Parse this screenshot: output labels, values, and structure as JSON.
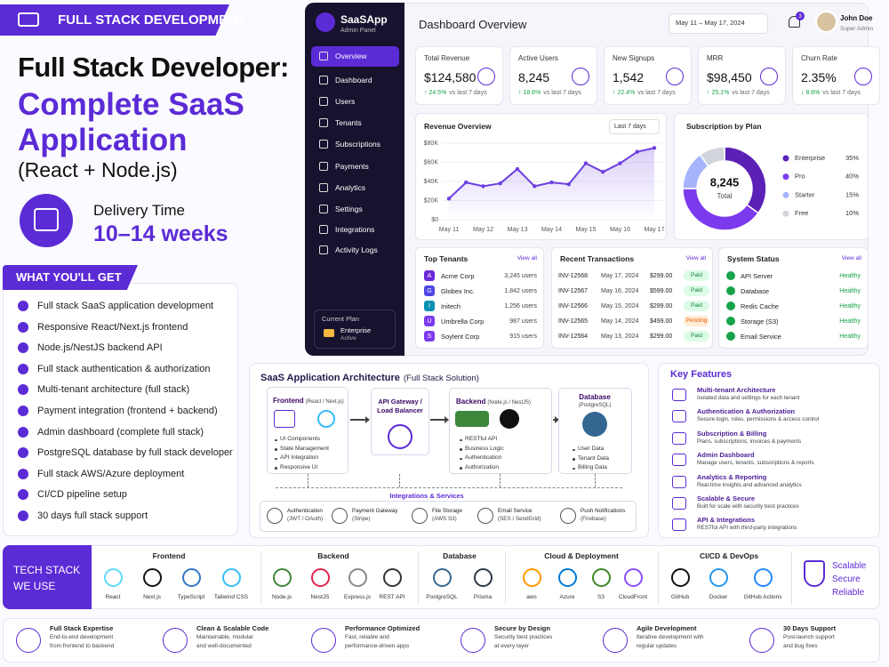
{
  "banner": {
    "tag": "FULL STACK DEVELOPMENT",
    "title_line1": "Full Stack Developer:",
    "title_line2": "Complete SaaS",
    "title_line3": "Application",
    "subtitle": "(React + Node.js)",
    "delivery_label": "Delivery Time",
    "delivery_value": "10–14 weeks"
  },
  "benefits": {
    "title": "WHAT YOU'LL GET",
    "items": [
      "Full stack SaaS application development",
      "Responsive React/Next.js frontend",
      "Node.js/NestJS backend API",
      "Full stack authentication & authorization",
      "Multi-tenant architecture (full stack)",
      "Payment integration (frontend + backend)",
      "Admin dashboard (complete full stack)",
      "PostgreSQL database by full stack developer",
      "Full stack AWS/Azure deployment",
      "CI/CD pipeline setup",
      "30 days full stack support"
    ]
  },
  "dashboard": {
    "brand": "SaaSApp",
    "brand_sub": "Admin Panel",
    "nav": [
      "Overview",
      "Dashboard",
      "Users",
      "Tenants",
      "Subscriptions",
      "Payments",
      "Analytics",
      "Settings",
      "Integrations",
      "Activity Logs"
    ],
    "plan": {
      "label": "Current Plan",
      "name": "Enterprise",
      "status": "Active"
    },
    "title": "Dashboard Overview",
    "date_range": "May 11 – May 17, 2024",
    "notifications": "3",
    "user": {
      "name": "John Doe",
      "role": "Super Admin"
    },
    "kpis": [
      {
        "label": "Total Revenue",
        "value": "$124,580",
        "change": "↑ 24.5%",
        "note": "vs last 7 days"
      },
      {
        "label": "Active Users",
        "value": "8,245",
        "change": "↑ 18.6%",
        "note": "vs last 7 days"
      },
      {
        "label": "New Signups",
        "value": "1,542",
        "change": "↑ 22.4%",
        "note": "vs last 7 days"
      },
      {
        "label": "MRR",
        "value": "$98,450",
        "change": "↑ 25.1%",
        "note": "vs last 7 days"
      },
      {
        "label": "Churn Rate",
        "value": "2.35%",
        "change": "↓ 8.6%",
        "note": "vs last 7 days"
      }
    ],
    "revenue_range": "Last 7 days",
    "top_tenants": {
      "title": "Top Tenants",
      "link": "View all",
      "rows": [
        [
          "A",
          "Acme Corp",
          "3,245 users"
        ],
        [
          "G",
          "Globex Inc.",
          "1,842 users"
        ],
        [
          "I",
          "Initech",
          "1,256 users"
        ],
        [
          "U",
          "Umbrella Corp",
          "987 users"
        ],
        [
          "S",
          "Soylent Corp",
          "915 users"
        ]
      ]
    },
    "transactions": {
      "title": "Recent Transactions",
      "link": "View all",
      "rows": [
        [
          "INV-12568",
          "May 17, 2024",
          "$299.00",
          "Paid"
        ],
        [
          "INV-12567",
          "May 16, 2024",
          "$599.00",
          "Paid"
        ],
        [
          "INV-12566",
          "May 15, 2024",
          "$299.00",
          "Paid"
        ],
        [
          "INV-12565",
          "May 14, 2024",
          "$499.00",
          "Pending"
        ],
        [
          "INV-12564",
          "May 13, 2024",
          "$299.00",
          "Paid"
        ]
      ]
    },
    "system_status": {
      "title": "System Status",
      "link": "View all",
      "rows": [
        [
          "API Server",
          "Healthy"
        ],
        [
          "Database",
          "Healthy"
        ],
        [
          "Redis Cache",
          "Healthy"
        ],
        [
          "Storage (S3)",
          "Healthy"
        ],
        [
          "Email Service",
          "Healthy"
        ]
      ]
    }
  },
  "chart_data": [
    {
      "type": "line",
      "title": "Revenue Overview",
      "categories": [
        "May 11",
        null,
        "May 12",
        null,
        "May 13",
        null,
        "May 14",
        null,
        "May 15",
        null,
        "May 16",
        null,
        "May 17"
      ],
      "values": [
        22000,
        39000,
        35000,
        38000,
        53000,
        35000,
        39000,
        37000,
        59000,
        50000,
        59000,
        71000,
        75000
      ],
      "color": "#6d3fe0",
      "ylim": [
        0,
        80000
      ],
      "yticks": [
        {
          "value": 0,
          "label": "$0"
        },
        {
          "value": 20000,
          "label": "$20K"
        },
        {
          "value": 40000,
          "label": "$40K"
        },
        {
          "value": 60000,
          "label": "$60K"
        },
        {
          "value": 80000,
          "label": "$80K"
        }
      ],
      "grid": true
    },
    {
      "type": "pie",
      "title": "Subscription by Plan",
      "total_value": "8,245",
      "total_label": "Total",
      "categories": [
        "Enterprise",
        "Pro",
        "Starter",
        "Free"
      ],
      "values": [
        35,
        40,
        15,
        10
      ],
      "value_labels": [
        "35%",
        "40%",
        "15%",
        "10%"
      ],
      "colors": [
        "#5b21b6",
        "#7c3aed",
        "#a5b4fc",
        "#d1d5db"
      ]
    }
  ],
  "architecture": {
    "title": "SaaS Application Architecture",
    "subtitle": "(Full Stack Solution)",
    "frontend": {
      "title": "Frontend",
      "sub": "(React / Next.js)",
      "items": [
        "UI Components",
        "State Management",
        "API Integration",
        "Responsive UI"
      ]
    },
    "gateway": {
      "line1": "API Gateway /",
      "line2": "Load Balancer"
    },
    "backend": {
      "title": "Backend",
      "sub": "(Node.js / NestJS)",
      "items": [
        "RESTful API",
        "Business Logic",
        "Authentication",
        "Authorization"
      ]
    },
    "database": {
      "title": "Database",
      "sub": "(PostgreSQL)",
      "items": [
        "User Data",
        "Tenant Data",
        "Billing Data"
      ]
    },
    "integrations_title": "Integrations & Services",
    "integrations": [
      {
        "title": "Authentication",
        "sub": "(JWT / OAuth)"
      },
      {
        "title": "Payment Gateway",
        "sub": "(Stripe)"
      },
      {
        "title": "File Storage",
        "sub": "(AWS S3)"
      },
      {
        "title": "Email Service",
        "sub": "(SES / SendGrid)"
      },
      {
        "title": "Push Notifications",
        "sub": "(Firebase)"
      }
    ]
  },
  "features": {
    "title": "Key Features",
    "items": [
      {
        "title": "Multi-tenant Architecture",
        "desc": "Isolated data and settings for each tenant"
      },
      {
        "title": "Authentication & Authorization",
        "desc": "Secure login, roles, permissions & access control"
      },
      {
        "title": "Subscription & Billing",
        "desc": "Plans, subscriptions, invoices & payments"
      },
      {
        "title": "Admin Dashboard",
        "desc": "Manage users, tenants, subscriptions & reports"
      },
      {
        "title": "Analytics & Reporting",
        "desc": "Real-time insights and advanced analytics"
      },
      {
        "title": "Scalable & Secure",
        "desc": "Built for scale with security best practices"
      },
      {
        "title": "API & Integrations",
        "desc": "RESTful API with third-party integrations"
      }
    ]
  },
  "tech_stack": {
    "title_line1": "TECH STACK",
    "title_line2": "WE USE",
    "groups": [
      {
        "name": "Frontend",
        "items": [
          "React",
          "Next.js",
          "TypeScript",
          "Tailwind CSS"
        ]
      },
      {
        "name": "Backend",
        "items": [
          "Node.js",
          "NestJS",
          "Express.js",
          "REST API"
        ]
      },
      {
        "name": "Database",
        "items": [
          "PostgreSQL",
          "Prisma"
        ]
      },
      {
        "name": "Cloud & Deployment",
        "items": [
          "aws",
          "Azure",
          "S3",
          "CloudFront"
        ]
      },
      {
        "name": "CI/CD & DevOps",
        "items": [
          "GitHub",
          "Docker",
          "GitHub Actions"
        ]
      }
    ],
    "tagline": [
      "Scalable",
      "Secure",
      "Reliable"
    ]
  },
  "footer": [
    {
      "title": "Full Stack Expertise",
      "desc": [
        "End-to-end development",
        "from frontend to backend"
      ]
    },
    {
      "title": "Clean & Scalable Code",
      "desc": [
        "Maintainable, modular",
        "and well-documented"
      ]
    },
    {
      "title": "Performance Optimized",
      "desc": [
        "Fast, reliable and",
        "performance-driven apps"
      ]
    },
    {
      "title": "Secure by Design",
      "desc": [
        "Security best practices",
        "at every layer"
      ]
    },
    {
      "title": "Agile Development",
      "desc": [
        "Iterative development with",
        "regular updates"
      ]
    },
    {
      "title": "30 Days Support",
      "desc": [
        "Post-launch support",
        "and bug fixes"
      ]
    }
  ]
}
